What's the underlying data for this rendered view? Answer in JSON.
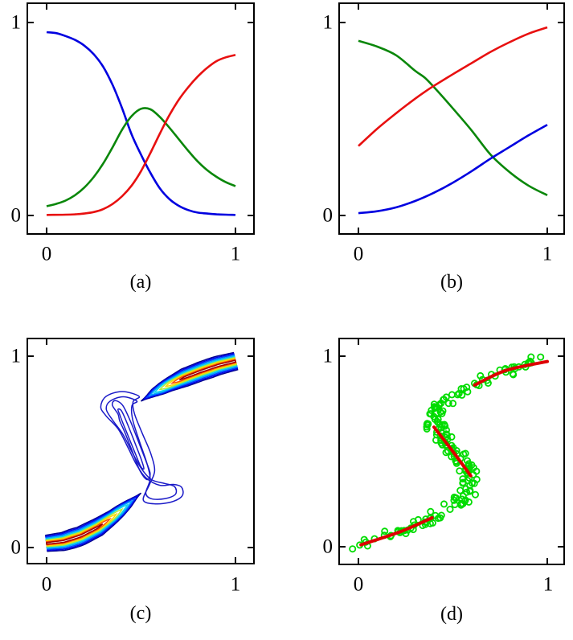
{
  "figure": {
    "background": "#ffffff"
  },
  "axes": {
    "x": [
      "0",
      "1"
    ],
    "y": [
      "0",
      "1"
    ]
  },
  "captions": {
    "a": "(a)",
    "b": "(b)",
    "c": "(c)",
    "d": "(d)"
  },
  "colors": {
    "axis": "#000000",
    "blue_curve": "#0000e0",
    "green_curve": "#0a870a",
    "red_curve": "#e81010",
    "scatter_green": "#00dc00",
    "mode_red": "#dd0000",
    "contour_outer_blue": "#1a1ac8"
  },
  "chart_data": [
    {
      "id": "a",
      "type": "line",
      "caption": "(a)",
      "xlim": [
        0,
        1
      ],
      "ylim": [
        0,
        1
      ],
      "xticks": [
        0,
        1
      ],
      "yticks": [
        0,
        1
      ],
      "line_width": 2.6,
      "series": [
        {
          "name": "blue-curve",
          "color": "#0000e0",
          "points": [
            [
              0,
              0.95
            ],
            [
              0.05,
              0.945
            ],
            [
              0.1,
              0.93
            ],
            [
              0.15,
              0.91
            ],
            [
              0.2,
              0.88
            ],
            [
              0.25,
              0.835
            ],
            [
              0.3,
              0.77
            ],
            [
              0.35,
              0.675
            ],
            [
              0.4,
              0.555
            ],
            [
              0.45,
              0.42
            ],
            [
              0.5,
              0.315
            ],
            [
              0.55,
              0.22
            ],
            [
              0.6,
              0.14
            ],
            [
              0.65,
              0.085
            ],
            [
              0.7,
              0.05
            ],
            [
              0.75,
              0.028
            ],
            [
              0.8,
              0.015
            ],
            [
              0.85,
              0.01
            ],
            [
              0.9,
              0.006
            ],
            [
              0.95,
              0.004
            ],
            [
              1,
              0.003
            ]
          ]
        },
        {
          "name": "green-curve",
          "color": "#0a870a",
          "points": [
            [
              0,
              0.048
            ],
            [
              0.05,
              0.06
            ],
            [
              0.1,
              0.077
            ],
            [
              0.15,
              0.105
            ],
            [
              0.2,
              0.145
            ],
            [
              0.25,
              0.2
            ],
            [
              0.3,
              0.27
            ],
            [
              0.35,
              0.355
            ],
            [
              0.4,
              0.445
            ],
            [
              0.45,
              0.515
            ],
            [
              0.5,
              0.553
            ],
            [
              0.55,
              0.55
            ],
            [
              0.6,
              0.51
            ],
            [
              0.65,
              0.455
            ],
            [
              0.7,
              0.395
            ],
            [
              0.75,
              0.335
            ],
            [
              0.8,
              0.28
            ],
            [
              0.85,
              0.235
            ],
            [
              0.9,
              0.2
            ],
            [
              0.95,
              0.172
            ],
            [
              1,
              0.152
            ]
          ]
        },
        {
          "name": "red-curve",
          "color": "#e81010",
          "points": [
            [
              0,
              0.003
            ],
            [
              0.1,
              0.004
            ],
            [
              0.15,
              0.006
            ],
            [
              0.2,
              0.01
            ],
            [
              0.25,
              0.018
            ],
            [
              0.3,
              0.033
            ],
            [
              0.35,
              0.06
            ],
            [
              0.4,
              0.1
            ],
            [
              0.45,
              0.155
            ],
            [
              0.5,
              0.23
            ],
            [
              0.55,
              0.325
            ],
            [
              0.6,
              0.425
            ],
            [
              0.65,
              0.52
            ],
            [
              0.7,
              0.6
            ],
            [
              0.75,
              0.665
            ],
            [
              0.8,
              0.72
            ],
            [
              0.85,
              0.765
            ],
            [
              0.9,
              0.8
            ],
            [
              0.95,
              0.82
            ],
            [
              1,
              0.832
            ]
          ]
        }
      ]
    },
    {
      "id": "b",
      "type": "line",
      "caption": "(b)",
      "xlim": [
        0,
        1
      ],
      "ylim": [
        0,
        1
      ],
      "xticks": [
        0,
        1
      ],
      "yticks": [
        0,
        1
      ],
      "line_width": 2.6,
      "series": [
        {
          "name": "green-curve",
          "color": "#0a870a",
          "points": [
            [
              0,
              0.905
            ],
            [
              0.1,
              0.875
            ],
            [
              0.2,
              0.83
            ],
            [
              0.3,
              0.75
            ],
            [
              0.35,
              0.715
            ],
            [
              0.4,
              0.665
            ],
            [
              0.5,
              0.555
            ],
            [
              0.6,
              0.44
            ],
            [
              0.7,
              0.315
            ],
            [
              0.8,
              0.225
            ],
            [
              0.9,
              0.155
            ],
            [
              1,
              0.105
            ]
          ]
        },
        {
          "name": "red-curve",
          "color": "#e81010",
          "points": [
            [
              0,
              0.36
            ],
            [
              0.1,
              0.45
            ],
            [
              0.2,
              0.53
            ],
            [
              0.3,
              0.605
            ],
            [
              0.35,
              0.64
            ],
            [
              0.4,
              0.672
            ],
            [
              0.5,
              0.732
            ],
            [
              0.6,
              0.79
            ],
            [
              0.7,
              0.848
            ],
            [
              0.8,
              0.898
            ],
            [
              0.9,
              0.942
            ],
            [
              1,
              0.975
            ]
          ]
        },
        {
          "name": "blue-curve",
          "color": "#0000e0",
          "points": [
            [
              0,
              0.012
            ],
            [
              0.1,
              0.022
            ],
            [
              0.2,
              0.042
            ],
            [
              0.3,
              0.075
            ],
            [
              0.4,
              0.118
            ],
            [
              0.5,
              0.17
            ],
            [
              0.6,
              0.23
            ],
            [
              0.7,
              0.295
            ],
            [
              0.8,
              0.355
            ],
            [
              0.9,
              0.415
            ],
            [
              1,
              0.47
            ]
          ]
        }
      ]
    },
    {
      "id": "c",
      "type": "contour",
      "caption": "(c)",
      "xlim": [
        0,
        1
      ],
      "ylim": [
        0,
        1
      ],
      "xticks": [
        0,
        1
      ],
      "yticks": [
        0,
        1
      ],
      "contour_line_width": 1.5,
      "ridges": [
        {
          "name": "lower-branch-density-ridge",
          "taper": "end",
          "spine": [
            [
              0,
              0.022
            ],
            [
              0.09,
              0.032
            ],
            [
              0.18,
              0.06
            ],
            [
              0.27,
              0.105
            ],
            [
              0.35,
              0.16
            ],
            [
              0.43,
              0.225
            ],
            [
              0.5,
              0.285
            ]
          ],
          "halfwidth": [
            [
              0,
              0.042
            ],
            [
              0.25,
              0.05
            ],
            [
              0.5,
              0.047
            ],
            [
              0.75,
              0.03
            ],
            [
              0.9,
              0.014
            ],
            [
              1,
              0.003
            ]
          ],
          "levels": [
            [
              0,
              1,
              1,
              "#00008f"
            ],
            [
              0,
              0.965,
              0.875,
              "#0000e8"
            ],
            [
              0,
              0.925,
              0.755,
              "#0048ff"
            ],
            [
              0,
              0.88,
              0.635,
              "#00a4ff"
            ],
            [
              0,
              0.83,
              0.52,
              "#10d8e8"
            ],
            [
              0,
              0.77,
              0.41,
              "#b0e838"
            ],
            [
              0,
              0.705,
              0.3,
              "#ffd800"
            ],
            [
              0,
              0.635,
              0.195,
              "#ff5000"
            ],
            [
              0,
              0.555,
              0.1,
              "#a00000"
            ]
          ]
        },
        {
          "name": "upper-branch-density-ridge",
          "taper": "start",
          "spine": [
            [
              0.5,
              0.765
            ],
            [
              0.57,
              0.81
            ],
            [
              0.65,
              0.852
            ],
            [
              0.73,
              0.888
            ],
            [
              0.82,
              0.922
            ],
            [
              0.91,
              0.952
            ],
            [
              1,
              0.974
            ]
          ],
          "halfwidth": [
            [
              0,
              0.003
            ],
            [
              0.1,
              0.014
            ],
            [
              0.25,
              0.03
            ],
            [
              0.5,
              0.047
            ],
            [
              0.75,
              0.05
            ],
            [
              1,
              0.046
            ]
          ],
          "levels": [
            [
              0,
              1,
              1,
              "#00008f"
            ],
            [
              0.035,
              1,
              0.875,
              "#0000e8"
            ],
            [
              0.075,
              1,
              0.755,
              "#0048ff"
            ],
            [
              0.12,
              1,
              0.635,
              "#00a4ff"
            ],
            [
              0.17,
              1,
              0.52,
              "#10d8e8"
            ],
            [
              0.23,
              1,
              0.41,
              "#b0e838"
            ],
            [
              0.295,
              1,
              0.3,
              "#ffd800"
            ],
            [
              0.365,
              1,
              0.195,
              "#ff5000"
            ],
            [
              0.445,
              1,
              0.1,
              "#a00000"
            ]
          ]
        }
      ],
      "loops": {
        "color": "#1a1ac8",
        "paths": [
          [
            [
              0.49,
              0.79
            ],
            [
              0.4,
              0.815
            ],
            [
              0.315,
              0.79
            ],
            [
              0.287,
              0.735
            ],
            [
              0.315,
              0.688
            ],
            [
              0.38,
              0.618
            ],
            [
              0.43,
              0.525
            ],
            [
              0.475,
              0.435
            ],
            [
              0.525,
              0.365
            ],
            [
              0.6,
              0.325
            ],
            [
              0.672,
              0.33
            ],
            [
              0.715,
              0.315
            ],
            [
              0.718,
              0.27
            ],
            [
              0.66,
              0.238
            ],
            [
              0.575,
              0.228
            ],
            [
              0.512,
              0.248
            ],
            [
              0.545,
              0.33
            ],
            [
              0.572,
              0.4
            ],
            [
              0.552,
              0.49
            ],
            [
              0.505,
              0.6
            ],
            [
              0.465,
              0.7
            ],
            [
              0.458,
              0.762
            ]
          ],
          [
            [
              0.478,
              0.765
            ],
            [
              0.405,
              0.788
            ],
            [
              0.335,
              0.764
            ],
            [
              0.316,
              0.722
            ],
            [
              0.348,
              0.668
            ],
            [
              0.405,
              0.59
            ],
            [
              0.452,
              0.5
            ],
            [
              0.5,
              0.415
            ],
            [
              0.555,
              0.355
            ],
            [
              0.625,
              0.335
            ],
            [
              0.678,
              0.318
            ],
            [
              0.682,
              0.278
            ],
            [
              0.625,
              0.255
            ],
            [
              0.555,
              0.255
            ],
            [
              0.525,
              0.285
            ],
            [
              0.548,
              0.36
            ],
            [
              0.528,
              0.45
            ],
            [
              0.488,
              0.565
            ],
            [
              0.455,
              0.672
            ],
            [
              0.452,
              0.742
            ]
          ],
          [
            [
              0.378,
              0.698
            ],
            [
              0.348,
              0.744
            ],
            [
              0.362,
              0.768
            ],
            [
              0.402,
              0.744
            ],
            [
              0.443,
              0.662
            ],
            [
              0.483,
              0.562
            ],
            [
              0.522,
              0.462
            ],
            [
              0.548,
              0.388
            ],
            [
              0.532,
              0.355
            ],
            [
              0.495,
              0.4
            ],
            [
              0.455,
              0.5
            ],
            [
              0.415,
              0.6
            ],
            [
              0.387,
              0.663
            ]
          ],
          [
            [
              0.388,
              0.692
            ],
            [
              0.378,
              0.722
            ],
            [
              0.398,
              0.712
            ],
            [
              0.432,
              0.636
            ],
            [
              0.468,
              0.546
            ],
            [
              0.502,
              0.458
            ],
            [
              0.515,
              0.412
            ],
            [
              0.498,
              0.425
            ],
            [
              0.464,
              0.505
            ],
            [
              0.428,
              0.592
            ],
            [
              0.402,
              0.655
            ]
          ]
        ]
      }
    },
    {
      "id": "d",
      "type": "scatter",
      "caption": "(d)",
      "xlim": [
        0,
        1
      ],
      "ylim": [
        0,
        1
      ],
      "xticks": [
        0,
        1
      ],
      "yticks": [
        0,
        1
      ],
      "scatter": {
        "name": "green-data-circles",
        "color": "#00dc00",
        "radius": 3.6,
        "stroke_width": 1.8,
        "n": 190,
        "seed": 11,
        "curve": "x = t + 0.3*sin(2*pi*t)",
        "x_noise": 0.1,
        "y_noise": 0.035
      },
      "mode_segments": {
        "name": "conditional-mode-curve",
        "color": "#dd0000",
        "width": 4,
        "segments": [
          [
            [
              0.013,
              0.01
            ],
            [
              0.225,
              0.08
            ],
            [
              0.39,
              0.152
            ]
          ],
          [
            [
              0.4,
              0.628
            ],
            [
              0.5,
              0.5
            ],
            [
              0.595,
              0.372
            ]
          ],
          [
            [
              0.615,
              0.848
            ],
            [
              0.78,
              0.925
            ],
            [
              1,
              0.972
            ]
          ]
        ]
      }
    }
  ]
}
